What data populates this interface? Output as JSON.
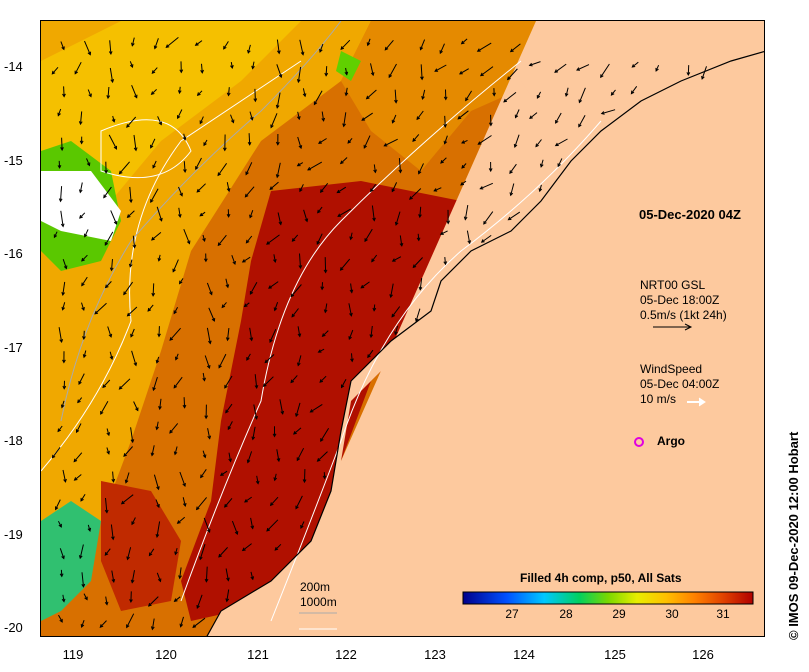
{
  "map": {
    "title_stamp": "© IMOS 09-Dec-2020 12:00 Hobart",
    "date_label": "05-Dec-2020 04Z",
    "y_ticks": [
      "-14",
      "-15",
      "-16",
      "-17",
      "-18",
      "-19",
      "-20"
    ],
    "x_ticks": [
      "119",
      "120",
      "121",
      "122",
      "123",
      "124",
      "125",
      "126"
    ],
    "currents_legend": {
      "line1": "NRT00 GSL",
      "line2": "05-Dec 18:00Z",
      "line3": "0.5m/s (1kt 24h)"
    },
    "wind_legend": {
      "line1": "WindSpeed",
      "line2": "05-Dec 04:00Z",
      "line3": "10 m/s"
    },
    "argo_label": "Argo",
    "isobaths": [
      "200m",
      "1000m"
    ],
    "colorbar": {
      "title": "Filled 4h comp, p50, All Sats",
      "ticks": [
        "27",
        "28",
        "29",
        "30",
        "31"
      ],
      "colors": [
        "#00008b",
        "#0050ff",
        "#00c8ff",
        "#00d060",
        "#7ad800",
        "#e8ee00",
        "#ffc000",
        "#ff8000",
        "#e04000",
        "#b00000"
      ]
    },
    "colors": {
      "land": "#fdc99e",
      "warm_sea": "#b01000",
      "mid_sea": "#e06a00"
    }
  }
}
